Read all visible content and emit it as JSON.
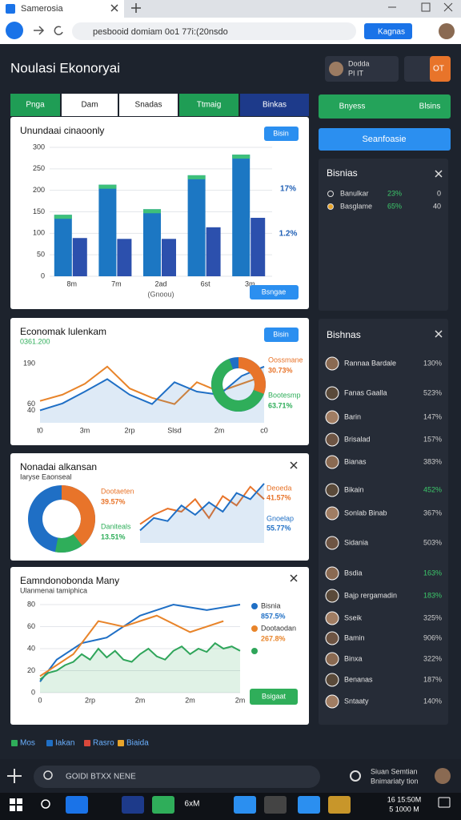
{
  "browser": {
    "tab": "Samerosia",
    "url": "pesbooid domiam 0o1 77i:(20nsdo",
    "button": "Kagnas"
  },
  "header": {
    "title": "Noulasi Ekonoryai",
    "user": "Dodda",
    "user_sub": "PI IT",
    "badge": "OT"
  },
  "tabs": [
    "Pnga",
    "Dam",
    "Snadas",
    "Ttmaig",
    "Binkas"
  ],
  "actions": [
    "Bnyess",
    "Blsins",
    "Seanfoasie"
  ],
  "charts": [
    {
      "type": "bar",
      "title": "Unundaai cinaoonly",
      "button": "Bisin",
      "x_label": "(Gnoou)",
      "categories": [
        "8m",
        "7m",
        "2ad",
        "6st",
        "3m"
      ],
      "series": [
        {
          "color": "#1c77c3",
          "values": [
            143,
            213,
            156,
            235,
            283
          ]
        },
        {
          "color": "#2c50ad",
          "values": [
            89,
            87,
            87,
            114,
            136
          ]
        }
      ],
      "ylim": [
        0,
        300
      ],
      "yticks": [
        0,
        50,
        100,
        150,
        200,
        250,
        300
      ],
      "grid": true,
      "annotations": [
        "17%",
        "1.2%"
      ],
      "footer_button": "Bsngae"
    },
    {
      "type": "line",
      "title": "Economak lulenkam",
      "subtitle": "0361.200",
      "button": "Bisin",
      "categories": [
        "t0",
        null,
        "3m",
        null,
        "2rp",
        null,
        "Slsd",
        null,
        "2m",
        null,
        "c0"
      ],
      "series": [
        {
          "color": "#e8842a",
          "values": [
            70,
            90,
            125,
            180,
            110,
            80,
            60,
            130,
            100,
            125,
            150
          ]
        },
        {
          "color": "#1f6fc5",
          "values": [
            40,
            62,
            100,
            140,
            90,
            60,
            130,
            100,
            90,
            150,
            180
          ]
        }
      ],
      "ylim": [
        0,
        200
      ],
      "yticks": [
        40,
        60,
        190
      ],
      "grid": false,
      "donut": [
        {
          "name": "Oossmane",
          "value": 30.73,
          "value_label": "30.73%",
          "color": "#e8742a"
        },
        {
          "name": "Bootesmp",
          "value": 63.71,
          "value_label": "63.71%",
          "color": "#2fae5a"
        }
      ]
    },
    {
      "type": "donut",
      "title": "Nonadai alkansan",
      "subtitle": "Iaryse Eaonseal",
      "donut": [
        {
          "name": "Dootaeten",
          "value": 39.57,
          "value_label": "39.57%",
          "color": "#e8742a"
        },
        {
          "name": "Daniteals",
          "value": 13.51,
          "value_label": "13.51%",
          "color": "#2fae5a"
        }
      ],
      "ylim": [
        0,
        100
      ],
      "series": [
        {
          "name": "Deoeda",
          "note": "41.57%",
          "color": "#e8742a",
          "values": [
            30,
            45,
            55,
            50,
            70,
            40,
            75,
            60,
            90,
            70
          ]
        },
        {
          "name": "Gnoelap",
          "note": "55.77%",
          "color": "#1f6fc5",
          "values": [
            20,
            40,
            35,
            60,
            45,
            65,
            50,
            80,
            70,
            95
          ]
        }
      ]
    },
    {
      "type": "line",
      "title": "Eamndonobonda Many",
      "subtitle": "Ulanmenai tamiphica",
      "button": "Bsigaat",
      "categories": [
        "0",
        null,
        null,
        null,
        null,
        null,
        "2rp",
        null,
        null,
        null,
        null,
        null,
        "2m",
        null,
        null,
        null,
        null,
        null,
        "2m",
        null,
        null,
        null,
        null,
        null,
        "2m"
      ],
      "ylim": [
        0,
        80
      ],
      "yticks": [
        0,
        20,
        40,
        60,
        80
      ],
      "grid": true,
      "series": [
        {
          "name": "Bisnia",
          "note": "857.5%",
          "color": "#1f6fc5",
          "x": [
            0,
            2,
            5,
            8,
            12,
            16,
            20,
            24
          ],
          "values": [
            10,
            30,
            45,
            50,
            70,
            80,
            75,
            80
          ]
        },
        {
          "name": "Dootaodan",
          "note": "267.8%",
          "color": "#e8842a",
          "x": [
            0,
            4,
            7,
            10,
            14,
            18,
            22
          ],
          "values": [
            15,
            35,
            65,
            60,
            70,
            55,
            65
          ]
        },
        {
          "color": "#2fa55a",
          "values": [
            12,
            18,
            20,
            25,
            28,
            35,
            30,
            40,
            32,
            38,
            30,
            28,
            35,
            40,
            33,
            30,
            38,
            42,
            35,
            40,
            37,
            45,
            40,
            42,
            38
          ]
        }
      ]
    }
  ],
  "legend": [
    {
      "name": "Mos",
      "color": "#2fae5a"
    },
    {
      "name": "Iakan",
      "color": "#1f6fc5"
    },
    {
      "name": "Rasro",
      "color": "#d9483b"
    },
    {
      "name": "Biaida",
      "color": "#e8a42a"
    }
  ],
  "panel_top": {
    "title": "Bisnias",
    "rows": [
      [
        "Banulkar",
        "23%",
        "0"
      ],
      [
        "Basglame",
        "65%",
        "40"
      ]
    ]
  },
  "panel_list": {
    "title": "Bishnas",
    "rows": [
      {
        "name": "Rannaa Bardale",
        "value": "130%"
      },
      {
        "name": "Fanas Gaalla",
        "value": "523%"
      },
      {
        "name": "Barin",
        "value": "147%"
      },
      {
        "name": "Brisalad",
        "value": "157%"
      },
      {
        "name": "Bianas",
        "value": "383%"
      },
      {
        "name": "Bikain",
        "value": "452%",
        "color": "#3cc86a"
      },
      {
        "name": "Sonlab Binab",
        "value": "367%"
      },
      {
        "name": "Sidania",
        "value": "503%"
      },
      {
        "name": "Bsdia",
        "value": "163%",
        "color": "#3cc86a"
      },
      {
        "name": "Bajp rergamadin",
        "value": "183%",
        "color": "#3cc86a"
      },
      {
        "name": "Sseik",
        "value": "325%"
      },
      {
        "name": "Bamin",
        "value": "906%"
      },
      {
        "name": "Binxa",
        "value": "322%"
      },
      {
        "name": "Benanas",
        "value": "187%"
      },
      {
        "name": "Sntaaty",
        "value": "140%"
      }
    ]
  },
  "search": {
    "placeholder": "GOIDI BTXX NENE",
    "side": [
      "Siuan Semtian",
      "Bnimariaty tion"
    ]
  },
  "taskbar": {
    "app": "6xM",
    "time": "16 15:50M",
    "date": "5 1000 M"
  }
}
